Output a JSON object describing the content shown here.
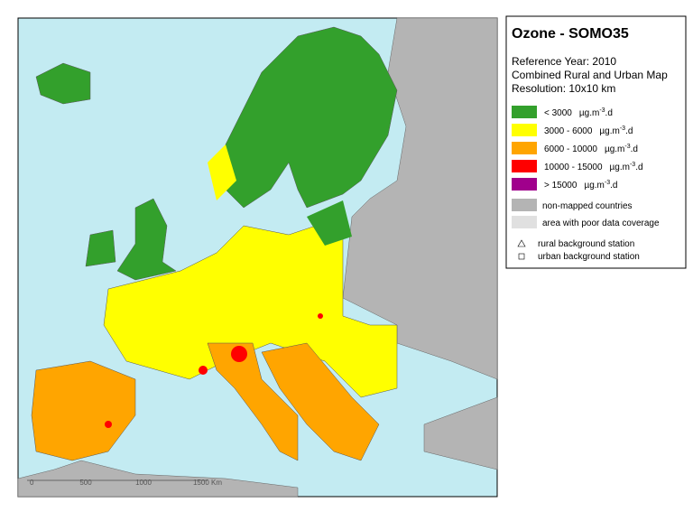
{
  "title": "Ozone - SOMO35",
  "subtitle_lines": [
    "Reference Year: 2010",
    "Combined Rural and Urban Map",
    "Resolution: 10x10 km"
  ],
  "legend": {
    "classes": [
      {
        "range": "<  3000",
        "unit": "µg.m",
        "exp": "-3",
        "unit_end": ".d",
        "color": "#33a02c"
      },
      {
        "range": "3000 -  6000",
        "unit": "µg.m",
        "exp": "-3",
        "unit_end": ".d",
        "color": "#ffff00"
      },
      {
        "range": "6000 - 10000",
        "unit": "µg.m",
        "exp": "-3",
        "unit_end": ".d",
        "color": "#ffa500"
      },
      {
        "range": "10000 - 15000",
        "unit": "µg.m",
        "exp": "-3",
        "unit_end": ".d",
        "color": "#ff0000"
      },
      {
        "range": ">  15000",
        "unit": "µg.m",
        "exp": "-3",
        "unit_end": ".d",
        "color": "#a0008c"
      }
    ],
    "areas": [
      {
        "label": "non-mapped countries",
        "color": "#b4b4b4"
      },
      {
        "label": "area with poor data coverage",
        "color": "#e0e0e0"
      }
    ],
    "stations": [
      {
        "label": "rural background station",
        "symbol": "triangle"
      },
      {
        "label": "urban background station",
        "symbol": "square"
      }
    ]
  },
  "scale_bar": [
    "0",
    "500",
    "1000",
    "1500 Km"
  ]
}
